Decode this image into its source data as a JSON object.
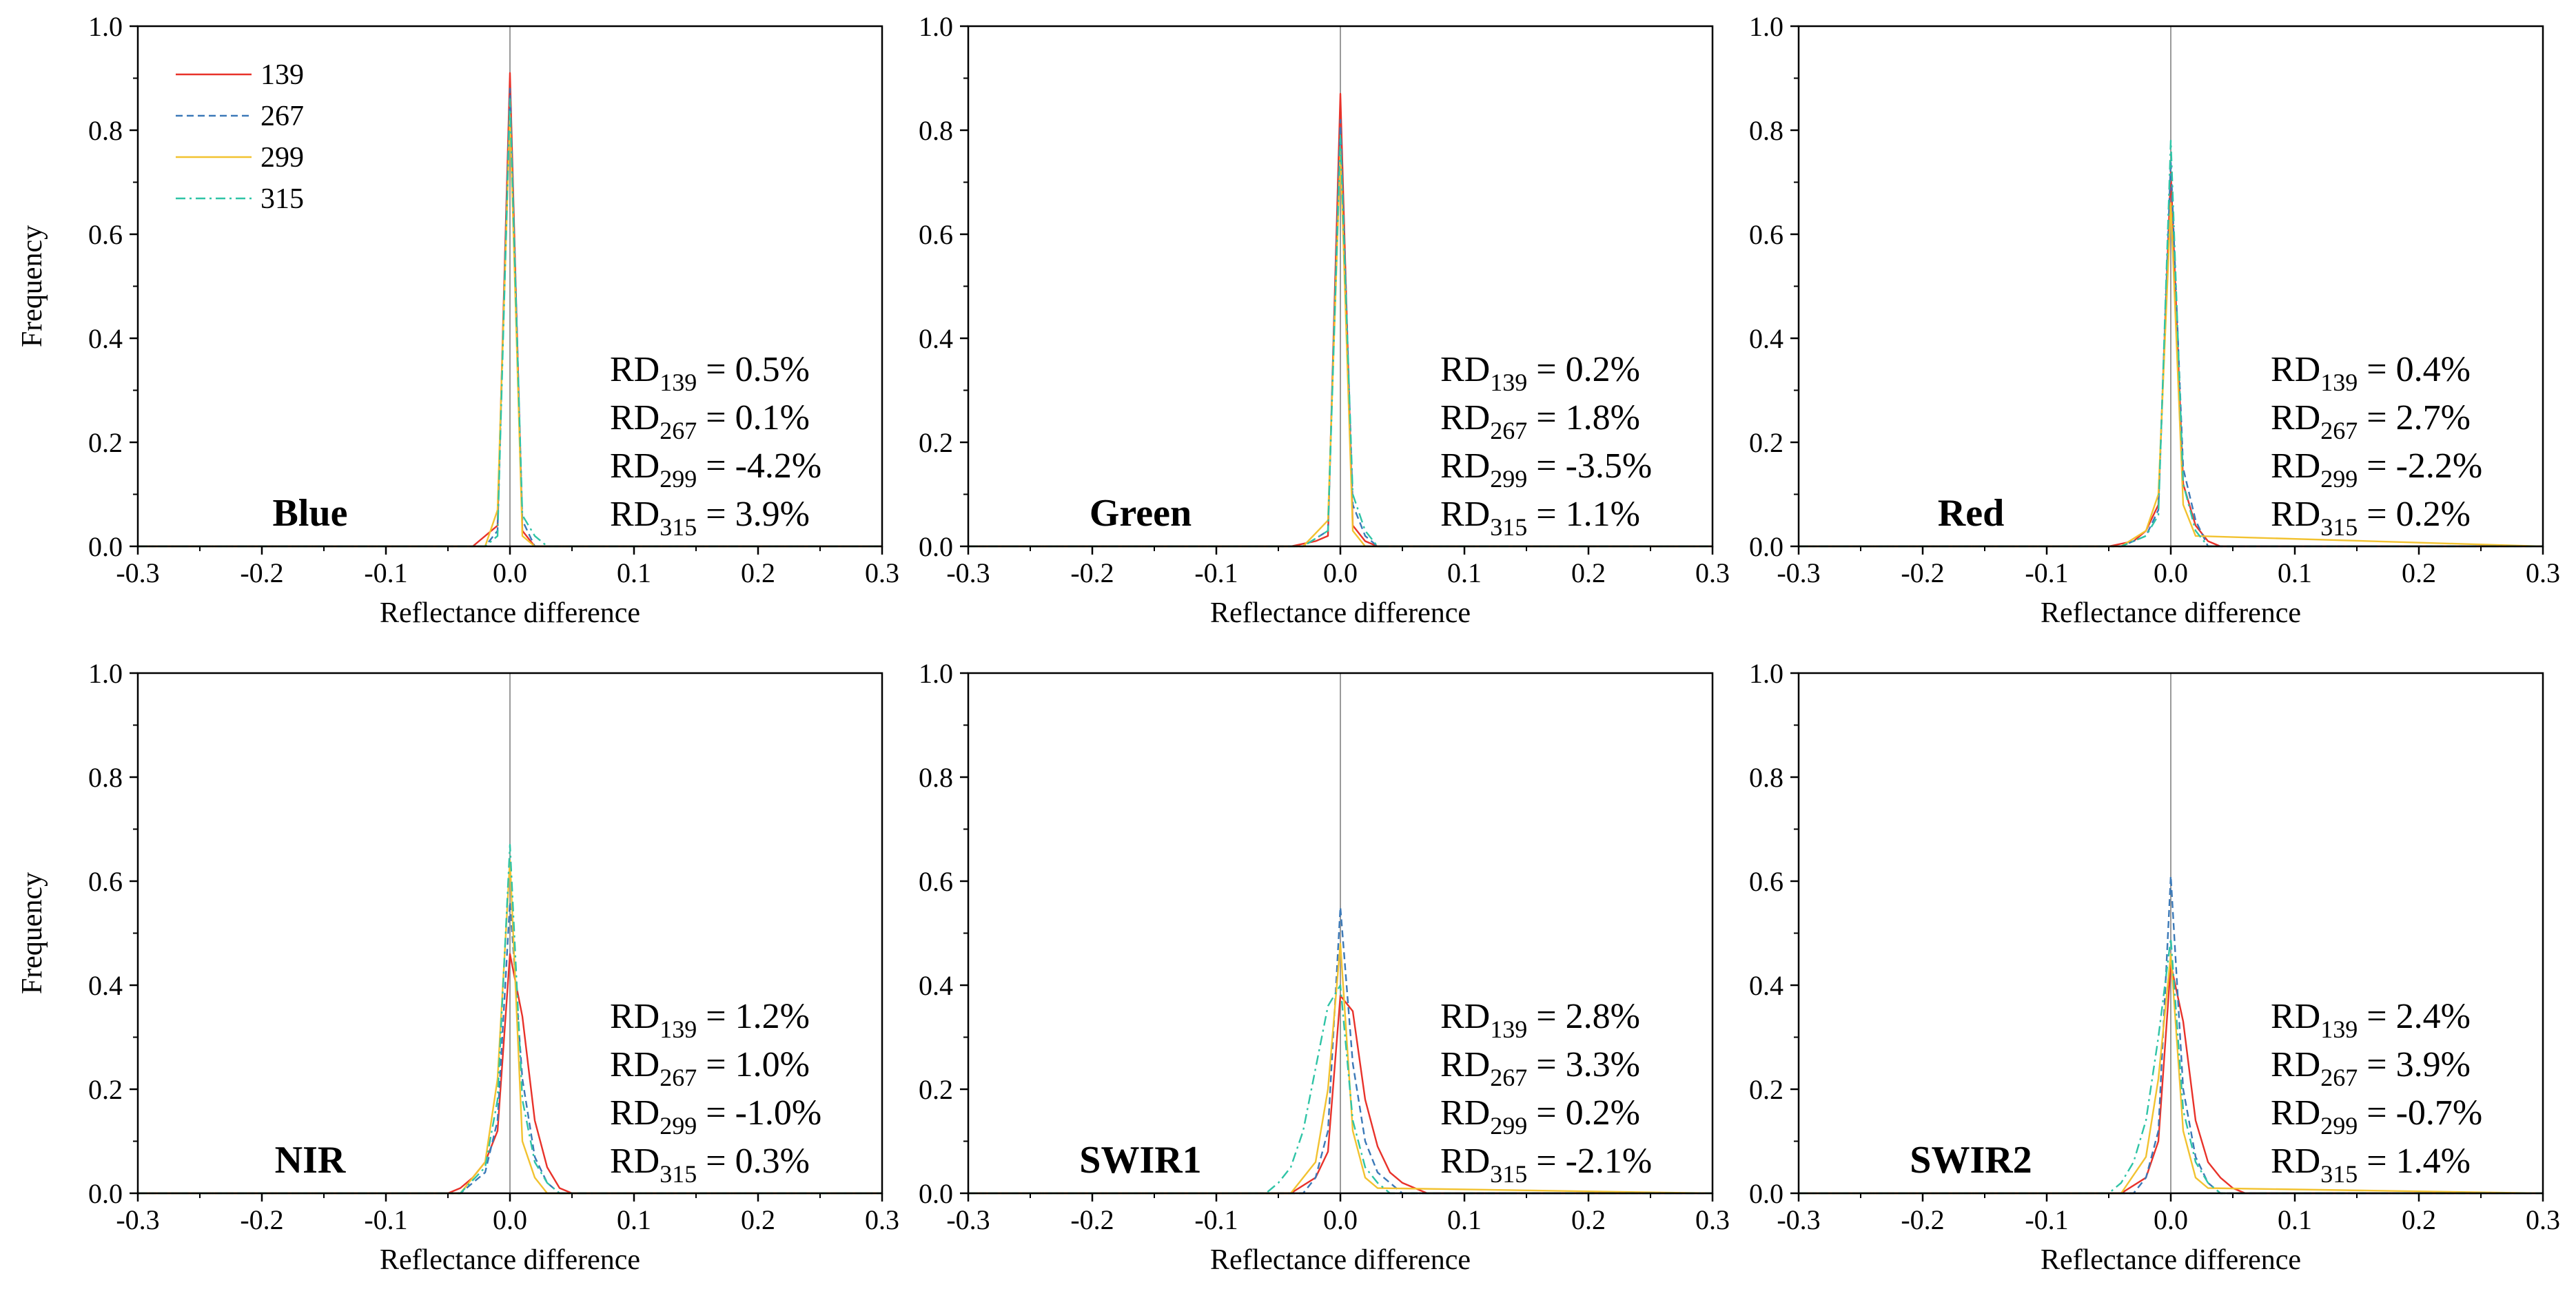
{
  "figure": {
    "legend": [
      {
        "label": "139",
        "color": "#e8322a",
        "dash": "solid"
      },
      {
        "label": "267",
        "color": "#3b79b8",
        "dash": "dashed"
      },
      {
        "label": "299",
        "color": "#f2c230",
        "dash": "solid"
      },
      {
        "label": "315",
        "color": "#2fc4a6",
        "dash": "dashdot"
      }
    ]
  },
  "chart_data": [
    {
      "type": "line",
      "band": "Blue",
      "xlabel": "Reflectance difference",
      "ylabel": "Frequency",
      "xlim": [
        -0.3,
        0.3
      ],
      "ylim": [
        0.0,
        1.0
      ],
      "xticks": [
        "-0.3",
        "-0.2",
        "-0.1",
        "0.0",
        "0.1",
        "0.2",
        "0.3"
      ],
      "yticks": [
        "0.0",
        "0.2",
        "0.4",
        "0.6",
        "0.8",
        "1.0"
      ],
      "rd": [
        {
          "sub": "139",
          "value": "= 0.5%"
        },
        {
          "sub": "267",
          "value": "= 0.1%"
        },
        {
          "sub": "299",
          "value": "= -4.2%"
        },
        {
          "sub": "315",
          "value": "= 3.9%"
        }
      ],
      "series": [
        {
          "name": "139",
          "x": [
            -0.3,
            -0.03,
            -0.01,
            0.0,
            0.01,
            0.02,
            0.3
          ],
          "y": [
            0,
            0,
            0.04,
            0.91,
            0.03,
            0,
            0
          ]
        },
        {
          "name": "267",
          "x": [
            -0.3,
            -0.02,
            -0.01,
            0.0,
            0.01,
            0.02,
            0.3
          ],
          "y": [
            0,
            0,
            0.03,
            0.88,
            0.05,
            0,
            0
          ]
        },
        {
          "name": "299",
          "x": [
            -0.3,
            -0.02,
            -0.01,
            0.0,
            0.01,
            0.02,
            0.3
          ],
          "y": [
            0,
            0,
            0.07,
            0.83,
            0.02,
            0,
            0
          ]
        },
        {
          "name": "315",
          "x": [
            -0.3,
            -0.02,
            -0.01,
            0.0,
            0.01,
            0.02,
            0.03,
            0.3
          ],
          "y": [
            0,
            0,
            0.02,
            0.86,
            0.06,
            0.02,
            0,
            0
          ]
        }
      ]
    },
    {
      "type": "line",
      "band": "Green",
      "xlabel": "Reflectance difference",
      "ylabel": "",
      "xlim": [
        -0.3,
        0.3
      ],
      "ylim": [
        0.0,
        1.0
      ],
      "xticks": [
        "-0.3",
        "-0.2",
        "-0.1",
        "0.0",
        "0.1",
        "0.2",
        "0.3"
      ],
      "yticks": [
        "0.0",
        "0.2",
        "0.4",
        "0.6",
        "0.8",
        "1.0"
      ],
      "rd": [
        {
          "sub": "139",
          "value": "= 0.2%"
        },
        {
          "sub": "267",
          "value": "= 1.8%"
        },
        {
          "sub": "299",
          "value": "= -3.5%"
        },
        {
          "sub": "315",
          "value": "= 1.1%"
        }
      ],
      "series": [
        {
          "name": "139",
          "x": [
            -0.3,
            -0.04,
            -0.02,
            -0.01,
            0.0,
            0.01,
            0.02,
            0.03,
            0.3
          ],
          "y": [
            0,
            0,
            0.01,
            0.02,
            0.87,
            0.04,
            0.01,
            0,
            0
          ]
        },
        {
          "name": "267",
          "x": [
            -0.3,
            -0.03,
            -0.01,
            0.0,
            0.01,
            0.02,
            0.03,
            0.3
          ],
          "y": [
            0,
            0,
            0.03,
            0.82,
            0.08,
            0.02,
            0,
            0
          ]
        },
        {
          "name": "299",
          "x": [
            -0.3,
            -0.03,
            -0.01,
            0.0,
            0.01,
            0.02,
            0.3
          ],
          "y": [
            0,
            0,
            0.05,
            0.76,
            0.03,
            0,
            0
          ]
        },
        {
          "name": "315",
          "x": [
            -0.3,
            -0.03,
            -0.01,
            0.0,
            0.01,
            0.02,
            0.03,
            0.3
          ],
          "y": [
            0,
            0,
            0.03,
            0.79,
            0.1,
            0.03,
            0,
            0
          ]
        }
      ]
    },
    {
      "type": "line",
      "band": "Red",
      "xlabel": "Reflectance difference",
      "ylabel": "",
      "xlim": [
        -0.3,
        0.3
      ],
      "ylim": [
        0.0,
        1.0
      ],
      "xticks": [
        "-0.3",
        "-0.2",
        "-0.1",
        "0.0",
        "0.1",
        "0.2",
        "0.3"
      ],
      "yticks": [
        "0.0",
        "0.2",
        "0.4",
        "0.6",
        "0.8",
        "1.0"
      ],
      "rd": [
        {
          "sub": "139",
          "value": "= 0.4%"
        },
        {
          "sub": "267",
          "value": "= 2.7%"
        },
        {
          "sub": "299",
          "value": "= -2.2%"
        },
        {
          "sub": "315",
          "value": "= 0.2%"
        }
      ],
      "series": [
        {
          "name": "139",
          "x": [
            -0.3,
            -0.05,
            -0.03,
            -0.02,
            -0.01,
            0.0,
            0.01,
            0.02,
            0.03,
            0.04,
            0.3
          ],
          "y": [
            0,
            0,
            0.01,
            0.03,
            0.08,
            0.72,
            0.12,
            0.04,
            0.01,
            0,
            0
          ]
        },
        {
          "name": "267",
          "x": [
            -0.3,
            -0.04,
            -0.02,
            -0.01,
            0.0,
            0.01,
            0.02,
            0.03,
            0.3
          ],
          "y": [
            0,
            0,
            0.02,
            0.07,
            0.74,
            0.15,
            0.05,
            0,
            0
          ]
        },
        {
          "name": "299",
          "x": [
            -0.3,
            -0.04,
            -0.02,
            -0.01,
            0.0,
            0.01,
            0.02,
            0.3
          ],
          "y": [
            0,
            0,
            0.03,
            0.1,
            0.66,
            0.08,
            0.02,
            0
          ]
        },
        {
          "name": "315",
          "x": [
            -0.3,
            -0.04,
            -0.02,
            -0.01,
            0.0,
            0.01,
            0.02,
            0.03,
            0.3
          ],
          "y": [
            0,
            0,
            0.02,
            0.06,
            0.78,
            0.12,
            0.03,
            0,
            0
          ]
        }
      ]
    },
    {
      "type": "line",
      "band": "NIR",
      "xlabel": "Reflectance difference",
      "ylabel": "Frequency",
      "xlim": [
        -0.3,
        0.3
      ],
      "ylim": [
        0.0,
        1.0
      ],
      "xticks": [
        "-0.3",
        "-0.2",
        "-0.1",
        "0.0",
        "0.1",
        "0.2",
        "0.3"
      ],
      "yticks": [
        "0.0",
        "0.2",
        "0.4",
        "0.6",
        "0.8",
        "1.0"
      ],
      "rd": [
        {
          "sub": "139",
          "value": "= 1.2%"
        },
        {
          "sub": "267",
          "value": "= 1.0%"
        },
        {
          "sub": "299",
          "value": "= -1.0%"
        },
        {
          "sub": "315",
          "value": "= 0.3%"
        }
      ],
      "series": [
        {
          "name": "139",
          "x": [
            -0.3,
            -0.05,
            -0.04,
            -0.03,
            -0.02,
            -0.01,
            0.0,
            0.01,
            0.02,
            0.03,
            0.04,
            0.05,
            0.3
          ],
          "y": [
            0,
            0,
            0.01,
            0.03,
            0.06,
            0.12,
            0.46,
            0.34,
            0.14,
            0.05,
            0.01,
            0,
            0
          ]
        },
        {
          "name": "267",
          "x": [
            -0.3,
            -0.04,
            -0.02,
            -0.01,
            0.0,
            0.01,
            0.02,
            0.03,
            0.04,
            0.3
          ],
          "y": [
            0,
            0,
            0.04,
            0.14,
            0.56,
            0.22,
            0.07,
            0.02,
            0,
            0
          ]
        },
        {
          "name": "299",
          "x": [
            -0.3,
            -0.04,
            -0.02,
            -0.01,
            0.0,
            0.01,
            0.02,
            0.03,
            0.3
          ],
          "y": [
            0,
            0,
            0.06,
            0.22,
            0.64,
            0.1,
            0.03,
            0,
            0
          ]
        },
        {
          "name": "315",
          "x": [
            -0.3,
            -0.04,
            -0.02,
            -0.01,
            0.0,
            0.01,
            0.02,
            0.03,
            0.04,
            0.3
          ],
          "y": [
            0,
            0,
            0.05,
            0.18,
            0.67,
            0.18,
            0.06,
            0.02,
            0,
            0
          ]
        }
      ]
    },
    {
      "type": "line",
      "band": "SWIR1",
      "xlabel": "Reflectance difference",
      "ylabel": "",
      "xlim": [
        -0.3,
        0.3
      ],
      "ylim": [
        0.0,
        1.0
      ],
      "xticks": [
        "-0.3",
        "-0.2",
        "-0.1",
        "0.0",
        "0.1",
        "0.2",
        "0.3"
      ],
      "yticks": [
        "0.0",
        "0.2",
        "0.4",
        "0.6",
        "0.8",
        "1.0"
      ],
      "rd": [
        {
          "sub": "139",
          "value": "= 2.8%"
        },
        {
          "sub": "267",
          "value": "= 3.3%"
        },
        {
          "sub": "299",
          "value": "= 0.2%"
        },
        {
          "sub": "315",
          "value": "= -2.1%"
        }
      ],
      "series": [
        {
          "name": "139",
          "x": [
            -0.3,
            -0.04,
            -0.02,
            -0.01,
            0.0,
            0.01,
            0.02,
            0.03,
            0.04,
            0.05,
            0.06,
            0.07,
            0.3
          ],
          "y": [
            0,
            0,
            0.03,
            0.08,
            0.38,
            0.35,
            0.18,
            0.09,
            0.04,
            0.02,
            0.01,
            0,
            0
          ]
        },
        {
          "name": "267",
          "x": [
            -0.3,
            -0.03,
            -0.02,
            -0.01,
            0.0,
            0.01,
            0.02,
            0.03,
            0.04,
            0.05,
            0.3
          ],
          "y": [
            0,
            0,
            0.03,
            0.12,
            0.55,
            0.25,
            0.1,
            0.04,
            0.02,
            0,
            0
          ]
        },
        {
          "name": "299",
          "x": [
            -0.3,
            -0.04,
            -0.02,
            -0.01,
            0.0,
            0.01,
            0.02,
            0.03,
            0.3
          ],
          "y": [
            0,
            0,
            0.06,
            0.2,
            0.48,
            0.12,
            0.03,
            0.01,
            0
          ]
        },
        {
          "name": "315",
          "x": [
            -0.3,
            -0.06,
            -0.05,
            -0.04,
            -0.03,
            -0.02,
            -0.01,
            0.0,
            0.01,
            0.02,
            0.03,
            0.04,
            0.3
          ],
          "y": [
            0,
            0,
            0.02,
            0.05,
            0.12,
            0.24,
            0.36,
            0.4,
            0.14,
            0.05,
            0.02,
            0,
            0
          ]
        }
      ]
    },
    {
      "type": "line",
      "band": "SWIR2",
      "xlabel": "Reflectance difference",
      "ylabel": "",
      "xlim": [
        -0.3,
        0.3
      ],
      "ylim": [
        0.0,
        1.0
      ],
      "xticks": [
        "-0.3",
        "-0.2",
        "-0.1",
        "0.0",
        "0.1",
        "0.2",
        "0.3"
      ],
      "yticks": [
        "0.0",
        "0.2",
        "0.4",
        "0.6",
        "0.8",
        "1.0"
      ],
      "rd": [
        {
          "sub": "139",
          "value": "= 2.4%"
        },
        {
          "sub": "267",
          "value": "= 3.9%"
        },
        {
          "sub": "299",
          "value": "= -0.7%"
        },
        {
          "sub": "315",
          "value": "= 1.4%"
        }
      ],
      "series": [
        {
          "name": "139",
          "x": [
            -0.3,
            -0.04,
            -0.02,
            -0.01,
            0.0,
            0.01,
            0.02,
            0.03,
            0.04,
            0.05,
            0.06,
            0.3
          ],
          "y": [
            0,
            0,
            0.03,
            0.1,
            0.44,
            0.33,
            0.14,
            0.06,
            0.03,
            0.01,
            0,
            0
          ]
        },
        {
          "name": "267",
          "x": [
            -0.3,
            -0.03,
            -0.02,
            -0.01,
            0.0,
            0.01,
            0.02,
            0.03,
            0.04,
            0.3
          ],
          "y": [
            0,
            0,
            0.03,
            0.12,
            0.61,
            0.2,
            0.07,
            0.02,
            0,
            0
          ]
        },
        {
          "name": "299",
          "x": [
            -0.3,
            -0.04,
            -0.02,
            -0.01,
            0.0,
            0.01,
            0.02,
            0.03,
            0.3
          ],
          "y": [
            0,
            0,
            0.07,
            0.22,
            0.46,
            0.12,
            0.03,
            0.01,
            0
          ]
        },
        {
          "name": "315",
          "x": [
            -0.3,
            -0.05,
            -0.04,
            -0.03,
            -0.02,
            -0.01,
            0.0,
            0.01,
            0.02,
            0.03,
            0.04,
            0.3
          ],
          "y": [
            0,
            0,
            0.02,
            0.06,
            0.14,
            0.3,
            0.49,
            0.16,
            0.06,
            0.02,
            0,
            0
          ]
        }
      ]
    }
  ]
}
